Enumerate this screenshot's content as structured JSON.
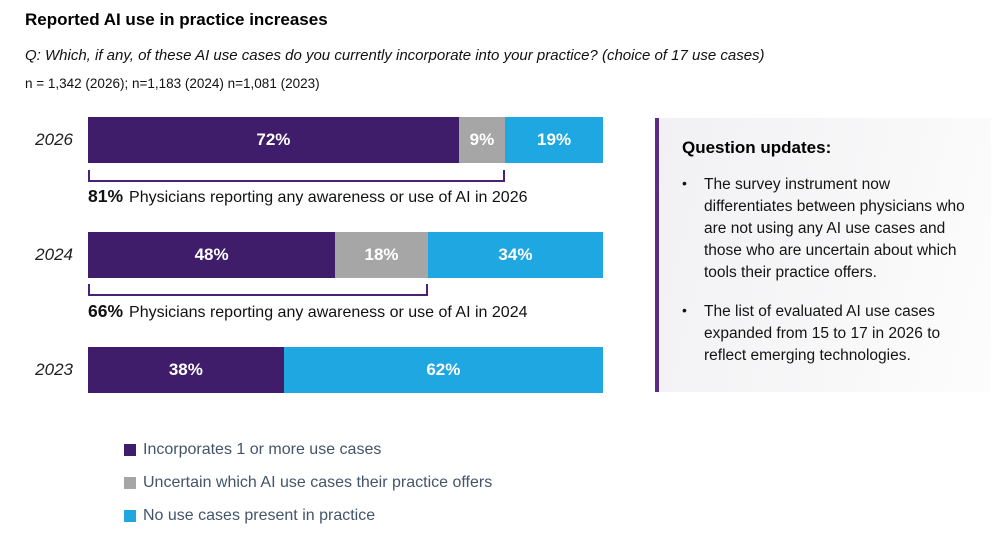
{
  "header": {
    "title": "Reported AI use in practice increases",
    "question": "Q: Which, if any, of these AI use cases do you currently incorporate into your practice? (choice of 17 use cases)",
    "sample": "n = 1,342 (2026); n=1,183 (2024) n=1,081 (2023)"
  },
  "colors": {
    "purple": "#3F1D6B",
    "gray": "#A6A6A6",
    "blue": "#1EA7E0",
    "bracket": "#4B2178",
    "panel_border": "#5B2C87",
    "legend_text": "#44546A"
  },
  "chart_data": {
    "type": "bar",
    "orientation": "horizontal",
    "stacked": true,
    "xlim": [
      0,
      100
    ],
    "categories": [
      "2026",
      "2024",
      "2023"
    ],
    "series": [
      {
        "name": "Incorporates 1 or more use cases",
        "color": "#3F1D6B",
        "values": [
          72,
          48,
          38
        ]
      },
      {
        "name": "Uncertain which AI use cases their practice offers",
        "color": "#A6A6A6",
        "values": [
          9,
          18,
          0
        ]
      },
      {
        "name": "No use cases present in practice",
        "color": "#1EA7E0",
        "values": [
          19,
          34,
          62
        ]
      }
    ],
    "rows": [
      {
        "year": "2026",
        "segments": [
          {
            "label": "72%",
            "pct": 72,
            "color": "#3F1D6B"
          },
          {
            "label": "9%",
            "pct": 9,
            "color": "#A6A6A6"
          },
          {
            "label": "19%",
            "pct": 19,
            "color": "#1EA7E0"
          }
        ]
      },
      {
        "year": "2024",
        "segments": [
          {
            "label": "48%",
            "pct": 48,
            "color": "#3F1D6B"
          },
          {
            "label": "18%",
            "pct": 18,
            "color": "#A6A6A6"
          },
          {
            "label": "34%",
            "pct": 34,
            "color": "#1EA7E0"
          }
        ]
      },
      {
        "year": "2023",
        "segments": [
          {
            "label": "38%",
            "pct": 38,
            "color": "#3F1D6B"
          },
          {
            "label": "62%",
            "pct": 62,
            "color": "#1EA7E0"
          }
        ]
      }
    ],
    "annotations": [
      {
        "year": "2026",
        "value": "81%",
        "text": "Physicians reporting any awareness or use of AI in 2026",
        "span_pct": 81
      },
      {
        "year": "2024",
        "value": "66%",
        "text": "Physicians reporting any awareness or use of AI in 2024",
        "span_pct": 66
      }
    ]
  },
  "legend": {
    "items": [
      {
        "label": "Incorporates 1 or more use cases",
        "color": "#3F1D6B"
      },
      {
        "label": "Uncertain which AI use cases their practice offers",
        "color": "#A6A6A6"
      },
      {
        "label": "No use cases present in practice",
        "color": "#1EA7E0"
      }
    ]
  },
  "panel": {
    "heading": "Question updates:",
    "bullet_glyph": "•",
    "bullets": [
      "The survey instrument now differentiates between physicians who are not using any AI use cases and those who are uncertain about which tools their practice offers.",
      "The list of evaluated AI use cases expanded from 15 to 17 in 2026 to reflect emerging technologies."
    ]
  }
}
